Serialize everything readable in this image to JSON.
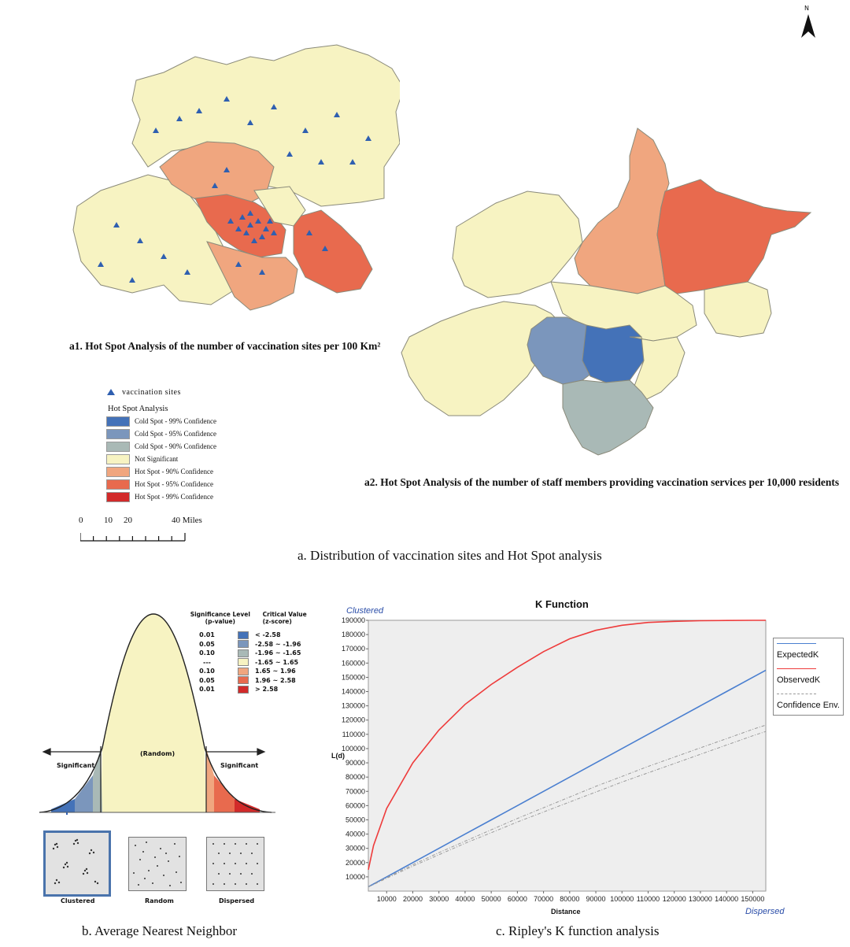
{
  "north_label": "N",
  "panel_a": {
    "caption_a1": "a1. Hot Spot Analysis of the number of vaccination sites per 100 Km²",
    "caption_a2": "a2. Hot Spot Analysis of the number of staff members providing vaccination services per 10,000 residents",
    "caption": "a. Distribution of vaccination sites and Hot Spot analysis",
    "legend": {
      "marker_label": "vaccination sites",
      "title": "Hot Spot Analysis",
      "items": [
        {
          "label": "Cold Spot - 99% Confidence",
          "color": "#4472b8"
        },
        {
          "label": "Cold Spot - 95% Confidence",
          "color": "#7b96bc"
        },
        {
          "label": "Cold Spot - 90% Confidence",
          "color": "#a9b9b6"
        },
        {
          "label": "Not Significant",
          "color": "#f7f3c2"
        },
        {
          "label": "Hot Spot - 90% Confidence",
          "color": "#f0a67f"
        },
        {
          "label": "Hot Spot - 95% Confidence",
          "color": "#e86a4e"
        },
        {
          "label": "Hot Spot - 99% Confidence",
          "color": "#d22a2a"
        }
      ],
      "scale_labels": [
        "0",
        "10",
        "20",
        "40 Miles"
      ]
    }
  },
  "panel_b": {
    "caption": "b. Average Nearest Neighbor",
    "sig_header": "Significance Level\n(p-value)",
    "crit_header": "Critical Value\n(z-score)",
    "rows": [
      {
        "p": "0.01",
        "z": "< -2.58",
        "color": "#4472b8"
      },
      {
        "p": "0.05",
        "z": "-2.58 ~ -1.96",
        "color": "#7b96bc"
      },
      {
        "p": "0.10",
        "z": "-1.96 ~ -1.65",
        "color": "#a9b9b6"
      },
      {
        "p": "---",
        "z": "-1.65 ~ 1.65",
        "color": "#f7f3c2"
      },
      {
        "p": "0.10",
        "z": "1.65 ~ 1.96",
        "color": "#f0a67f"
      },
      {
        "p": "0.05",
        "z": "1.96 ~ 2.58",
        "color": "#e86a4e"
      },
      {
        "p": "0.01",
        "z": "> 2.58",
        "color": "#d22a2a"
      }
    ],
    "random_label": "(Random)",
    "significant_left": "Significant",
    "significant_right": "Significant",
    "patterns": [
      "Clustered",
      "Random",
      "Dispersed"
    ]
  },
  "chart_data": {
    "type": "line",
    "title": "K Function",
    "xlabel": "Distance",
    "ylabel": "L(d)",
    "corner_top_left": "Clustered",
    "corner_bottom_right": "Dispersed",
    "xlim": [
      3000,
      155000
    ],
    "ylim": [
      0,
      190000
    ],
    "x_ticks": [
      10000,
      20000,
      30000,
      40000,
      50000,
      60000,
      70000,
      80000,
      90000,
      100000,
      110000,
      120000,
      130000,
      140000,
      150000
    ],
    "y_ticks": [
      10000,
      20000,
      30000,
      40000,
      50000,
      60000,
      70000,
      80000,
      90000,
      100000,
      110000,
      120000,
      130000,
      140000,
      150000,
      160000,
      170000,
      180000,
      190000
    ],
    "x": [
      3000,
      5000,
      10000,
      20000,
      30000,
      40000,
      50000,
      60000,
      70000,
      80000,
      90000,
      100000,
      110000,
      120000,
      130000,
      140000,
      150000,
      155000
    ],
    "series": [
      {
        "name": "ExpectedK",
        "color": "#4a7fd0",
        "values": [
          3000,
          5000,
          10000,
          20000,
          30000,
          40000,
          50000,
          60000,
          70000,
          80000,
          90000,
          100000,
          110000,
          120000,
          130000,
          140000,
          150000,
          155000
        ]
      },
      {
        "name": "ObservedK",
        "color": "#ee3b3b",
        "values": [
          15000,
          32000,
          58000,
          90000,
          113000,
          131000,
          145000,
          157000,
          168000,
          177000,
          183000,
          186500,
          188500,
          189300,
          189700,
          189900,
          190000,
          190000
        ]
      },
      {
        "name": "Confidence Env.",
        "color": "#9a9a9a",
        "values": [
          3000,
          4800,
          9500,
          18500,
          27000,
          35000,
          43000,
          51000,
          58500,
          66000,
          73500,
          80500,
          87500,
          94000,
          100500,
          107000,
          113500,
          116500
        ]
      },
      {
        "name": "Confidence Env. (lower)",
        "color": "#9a9a9a",
        "values": [
          3000,
          4600,
          9000,
          17500,
          25500,
          33500,
          41000,
          48500,
          55500,
          62500,
          69500,
          76500,
          83000,
          89500,
          96000,
          102500,
          109000,
          112000
        ]
      }
    ],
    "legend": [
      "ExpectedK",
      "ObservedK",
      "Confidence Env."
    ],
    "caption": "c. Ripley's K function analysis"
  }
}
